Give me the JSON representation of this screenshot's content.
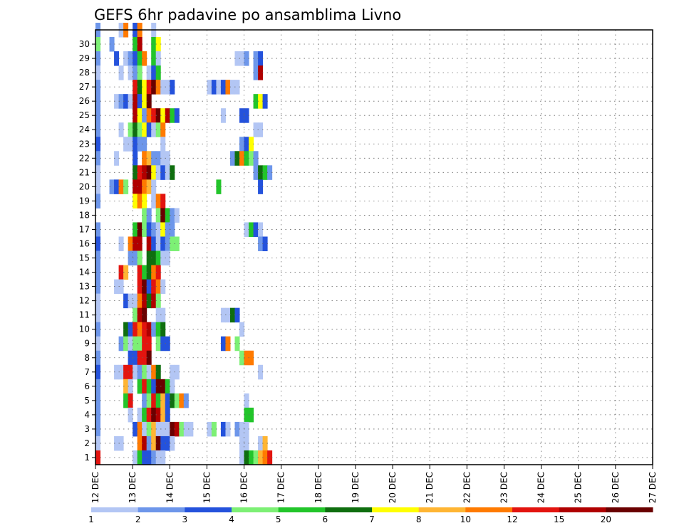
{
  "chart_data": {
    "type": "heatmap",
    "title": "GEFS 6hr padavine po ansamblima Livno",
    "xlabel": "",
    "ylabel": "",
    "x_ticks": [
      "12 DEC",
      "13 DEC",
      "14 DEC",
      "15 DEC",
      "16 DEC",
      "17 DEC",
      "18 DEC",
      "19 DEC",
      "20 DEC",
      "21 DEC",
      "22 DEC",
      "23 DEC",
      "24 DEC",
      "25 DEC",
      "26 DEC",
      "27 DEC"
    ],
    "y_ticks": [
      "1",
      "2",
      "3",
      "4",
      "5",
      "6",
      "7",
      "8",
      "9",
      "10",
      "11",
      "12",
      "13",
      "14",
      "15",
      "16",
      "17",
      "18",
      "19",
      "20",
      "21",
      "22",
      "23",
      "24",
      "25",
      "26",
      "27",
      "28",
      "29",
      "30"
    ],
    "grid": true,
    "time_step_hours": 6,
    "colorbar": {
      "labels": [
        "1",
        "2",
        "3",
        "4",
        "5",
        "6",
        "7",
        "8",
        "10",
        "12",
        "15",
        "20"
      ],
      "colors": [
        "#b3c6f4",
        "#6d96ea",
        "#2452dc",
        "#7df075",
        "#22c52a",
        "#0f6e0f",
        "#ffff00",
        "#ffb533",
        "#ff7a00",
        "#e3140f",
        "#b00000",
        "#6a0000"
      ],
      "placement": "bottom"
    },
    "cells": [
      [
        30,
        0,
        2
      ],
      [
        30,
        5,
        1
      ],
      [
        30,
        6,
        10
      ],
      [
        30,
        8,
        3
      ],
      [
        30,
        9,
        10
      ],
      [
        30,
        12,
        1
      ],
      [
        29,
        0,
        4
      ],
      [
        29,
        3,
        2
      ],
      [
        29,
        8,
        5
      ],
      [
        29,
        9,
        15
      ],
      [
        29,
        12,
        5
      ],
      [
        29,
        13,
        7
      ],
      [
        28,
        0,
        2
      ],
      [
        28,
        4,
        3
      ],
      [
        28,
        6,
        1
      ],
      [
        28,
        7,
        2
      ],
      [
        28,
        8,
        3
      ],
      [
        28,
        9,
        5
      ],
      [
        28,
        10,
        10
      ],
      [
        28,
        12,
        5
      ],
      [
        28,
        13,
        1
      ],
      [
        28,
        30,
        1
      ],
      [
        28,
        31,
        1
      ],
      [
        28,
        32,
        2
      ],
      [
        28,
        34,
        2
      ],
      [
        28,
        35,
        3
      ],
      [
        27,
        0,
        1
      ],
      [
        27,
        5,
        1
      ],
      [
        27,
        7,
        1
      ],
      [
        27,
        8,
        2
      ],
      [
        27,
        9,
        4
      ],
      [
        27,
        11,
        1
      ],
      [
        27,
        12,
        3
      ],
      [
        27,
        13,
        5
      ],
      [
        27,
        34,
        2
      ],
      [
        27,
        35,
        15
      ],
      [
        26,
        0,
        2
      ],
      [
        26,
        8,
        12
      ],
      [
        26,
        9,
        6
      ],
      [
        26,
        10,
        7
      ],
      [
        26,
        11,
        12
      ],
      [
        26,
        12,
        20
      ],
      [
        26,
        13,
        10
      ],
      [
        26,
        14,
        1
      ],
      [
        26,
        15,
        1
      ],
      [
        26,
        16,
        3
      ],
      [
        26,
        24,
        1
      ],
      [
        26,
        25,
        3
      ],
      [
        26,
        26,
        1
      ],
      [
        26,
        27,
        3
      ],
      [
        26,
        28,
        10
      ],
      [
        26,
        29,
        1
      ],
      [
        26,
        30,
        1
      ],
      [
        25,
        0,
        2
      ],
      [
        25,
        4,
        1
      ],
      [
        25,
        5,
        2
      ],
      [
        25,
        6,
        3
      ],
      [
        25,
        7,
        1
      ],
      [
        25,
        8,
        15
      ],
      [
        25,
        9,
        3
      ],
      [
        25,
        10,
        7
      ],
      [
        25,
        11,
        20
      ],
      [
        25,
        34,
        5
      ],
      [
        25,
        35,
        7
      ],
      [
        25,
        36,
        3
      ],
      [
        24,
        0,
        2
      ],
      [
        24,
        8,
        15
      ],
      [
        24,
        9,
        7
      ],
      [
        24,
        10,
        2
      ],
      [
        24,
        11,
        10
      ],
      [
        24,
        12,
        12
      ],
      [
        24,
        13,
        20
      ],
      [
        24,
        14,
        7
      ],
      [
        24,
        15,
        15
      ],
      [
        24,
        16,
        5
      ],
      [
        24,
        17,
        3
      ],
      [
        24,
        27,
        1
      ],
      [
        24,
        31,
        3
      ],
      [
        24,
        32,
        3
      ],
      [
        23,
        0,
        2
      ],
      [
        23,
        5,
        1
      ],
      [
        23,
        7,
        4
      ],
      [
        23,
        8,
        6
      ],
      [
        23,
        9,
        4
      ],
      [
        23,
        10,
        7
      ],
      [
        23,
        11,
        3
      ],
      [
        23,
        12,
        1
      ],
      [
        23,
        13,
        4
      ],
      [
        23,
        14,
        10
      ],
      [
        23,
        34,
        1
      ],
      [
        23,
        35,
        1
      ],
      [
        22,
        0,
        3
      ],
      [
        22,
        6,
        1
      ],
      [
        22,
        7,
        1
      ],
      [
        22,
        8,
        3
      ],
      [
        22,
        9,
        2
      ],
      [
        22,
        10,
        2
      ],
      [
        22,
        14,
        1
      ],
      [
        22,
        31,
        2
      ],
      [
        22,
        32,
        3
      ],
      [
        22,
        33,
        7
      ],
      [
        21,
        0,
        2
      ],
      [
        21,
        4,
        1
      ],
      [
        21,
        8,
        3
      ],
      [
        21,
        10,
        10
      ],
      [
        21,
        11,
        8
      ],
      [
        21,
        12,
        2
      ],
      [
        21,
        13,
        2
      ],
      [
        21,
        14,
        1
      ],
      [
        21,
        15,
        1
      ],
      [
        21,
        29,
        2
      ],
      [
        21,
        30,
        6
      ],
      [
        21,
        31,
        10
      ],
      [
        21,
        32,
        5
      ],
      [
        21,
        33,
        4
      ],
      [
        21,
        34,
        2
      ],
      [
        20,
        0,
        1
      ],
      [
        20,
        8,
        6
      ],
      [
        20,
        9,
        12
      ],
      [
        20,
        10,
        15
      ],
      [
        20,
        11,
        20
      ],
      [
        20,
        12,
        7
      ],
      [
        20,
        13,
        1
      ],
      [
        20,
        14,
        3
      ],
      [
        20,
        15,
        1
      ],
      [
        20,
        16,
        6
      ],
      [
        20,
        34,
        2
      ],
      [
        20,
        35,
        6
      ],
      [
        20,
        36,
        5
      ],
      [
        20,
        37,
        2
      ],
      [
        19,
        0,
        1
      ],
      [
        19,
        3,
        2
      ],
      [
        19,
        4,
        3
      ],
      [
        19,
        5,
        10
      ],
      [
        19,
        6,
        4
      ],
      [
        19,
        8,
        15
      ],
      [
        19,
        9,
        15
      ],
      [
        19,
        10,
        10
      ],
      [
        19,
        11,
        8
      ],
      [
        19,
        12,
        1
      ],
      [
        19,
        26,
        5
      ],
      [
        19,
        35,
        3
      ],
      [
        18,
        0,
        2
      ],
      [
        18,
        8,
        7
      ],
      [
        18,
        9,
        10
      ],
      [
        18,
        10,
        7
      ],
      [
        18,
        12,
        1
      ],
      [
        18,
        13,
        10
      ],
      [
        18,
        14,
        12
      ],
      [
        17,
        10,
        4
      ],
      [
        17,
        11,
        2
      ],
      [
        17,
        13,
        4
      ],
      [
        17,
        14,
        20
      ],
      [
        17,
        15,
        5
      ],
      [
        17,
        16,
        2
      ],
      [
        17,
        17,
        1
      ],
      [
        16,
        0,
        2
      ],
      [
        16,
        8,
        5
      ],
      [
        16,
        9,
        20
      ],
      [
        16,
        10,
        4
      ],
      [
        16,
        11,
        3
      ],
      [
        16,
        12,
        2
      ],
      [
        16,
        13,
        1
      ],
      [
        16,
        14,
        7
      ],
      [
        16,
        15,
        2
      ],
      [
        16,
        16,
        2
      ],
      [
        16,
        32,
        1
      ],
      [
        16,
        33,
        5
      ],
      [
        16,
        34,
        3
      ],
      [
        16,
        35,
        1
      ],
      [
        15,
        0,
        3
      ],
      [
        15,
        5,
        1
      ],
      [
        15,
        7,
        10
      ],
      [
        15,
        8,
        15
      ],
      [
        15,
        9,
        15
      ],
      [
        15,
        11,
        15
      ],
      [
        15,
        12,
        3
      ],
      [
        15,
        13,
        1
      ],
      [
        15,
        14,
        3
      ],
      [
        15,
        15,
        2
      ],
      [
        15,
        16,
        4
      ],
      [
        15,
        17,
        4
      ],
      [
        15,
        35,
        2
      ],
      [
        15,
        36,
        3
      ],
      [
        14,
        0,
        2
      ],
      [
        14,
        7,
        2
      ],
      [
        14,
        8,
        2
      ],
      [
        14,
        9,
        4
      ],
      [
        14,
        11,
        6
      ],
      [
        14,
        12,
        6
      ],
      [
        14,
        13,
        5
      ],
      [
        14,
        14,
        1
      ],
      [
        14,
        15,
        1
      ],
      [
        13,
        0,
        2
      ],
      [
        13,
        5,
        12
      ],
      [
        13,
        6,
        8
      ],
      [
        13,
        9,
        12
      ],
      [
        13,
        10,
        5
      ],
      [
        13,
        11,
        6
      ],
      [
        13,
        12,
        10
      ],
      [
        13,
        13,
        12
      ],
      [
        12,
        0,
        2
      ],
      [
        12,
        4,
        1
      ],
      [
        12,
        5,
        1
      ],
      [
        12,
        9,
        12
      ],
      [
        12,
        10,
        20
      ],
      [
        12,
        11,
        3
      ],
      [
        12,
        12,
        12
      ],
      [
        12,
        13,
        10
      ],
      [
        12,
        14,
        1
      ],
      [
        11,
        0,
        1
      ],
      [
        11,
        6,
        3
      ],
      [
        11,
        7,
        1
      ],
      [
        11,
        8,
        1
      ],
      [
        11,
        9,
        10
      ],
      [
        11,
        10,
        15
      ],
      [
        11,
        11,
        6
      ],
      [
        11,
        12,
        15
      ],
      [
        11,
        13,
        4
      ],
      [
        10,
        0,
        1
      ],
      [
        10,
        8,
        4
      ],
      [
        10,
        9,
        15
      ],
      [
        10,
        10,
        20
      ],
      [
        10,
        13,
        1
      ],
      [
        10,
        14,
        1
      ],
      [
        10,
        27,
        1
      ],
      [
        10,
        28,
        1
      ],
      [
        10,
        29,
        6
      ],
      [
        10,
        30,
        3
      ],
      [
        9,
        0,
        2
      ],
      [
        9,
        6,
        6
      ],
      [
        9,
        7,
        3
      ],
      [
        9,
        8,
        12
      ],
      [
        9,
        9,
        10
      ],
      [
        9,
        10,
        12
      ],
      [
        9,
        11,
        15
      ],
      [
        9,
        12,
        2
      ],
      [
        9,
        13,
        5
      ],
      [
        9,
        14,
        6
      ],
      [
        9,
        31,
        1
      ],
      [
        8,
        0,
        1
      ],
      [
        8,
        5,
        2
      ],
      [
        8,
        6,
        4
      ],
      [
        8,
        7,
        1
      ],
      [
        8,
        8,
        4
      ],
      [
        8,
        9,
        4
      ],
      [
        8,
        10,
        12
      ],
      [
        8,
        11,
        12
      ],
      [
        8,
        13,
        4
      ],
      [
        8,
        14,
        3
      ],
      [
        8,
        15,
        3
      ],
      [
        8,
        27,
        3
      ],
      [
        8,
        28,
        10
      ],
      [
        8,
        30,
        4
      ],
      [
        7,
        0,
        2
      ],
      [
        7,
        7,
        3
      ],
      [
        7,
        8,
        3
      ],
      [
        7,
        9,
        12
      ],
      [
        7,
        10,
        12
      ],
      [
        7,
        11,
        20
      ],
      [
        7,
        31,
        4
      ],
      [
        7,
        32,
        10
      ],
      [
        7,
        33,
        10
      ],
      [
        6,
        0,
        3
      ],
      [
        6,
        4,
        1
      ],
      [
        6,
        5,
        1
      ],
      [
        6,
        6,
        12
      ],
      [
        6,
        7,
        12
      ],
      [
        6,
        8,
        1
      ],
      [
        6,
        9,
        2
      ],
      [
        6,
        10,
        4
      ],
      [
        6,
        11,
        1
      ],
      [
        6,
        12,
        10
      ],
      [
        6,
        13,
        6
      ],
      [
        6,
        16,
        1
      ],
      [
        6,
        17,
        1
      ],
      [
        6,
        35,
        1
      ],
      [
        5,
        0,
        2
      ],
      [
        5,
        6,
        8
      ],
      [
        5,
        7,
        1
      ],
      [
        5,
        9,
        5
      ],
      [
        5,
        10,
        12
      ],
      [
        5,
        11,
        5
      ],
      [
        5,
        12,
        3
      ],
      [
        5,
        13,
        20
      ],
      [
        5,
        14,
        20
      ],
      [
        5,
        15,
        5
      ],
      [
        5,
        16,
        1
      ],
      [
        4,
        0,
        2
      ],
      [
        4,
        6,
        5
      ],
      [
        4,
        7,
        12
      ],
      [
        4,
        10,
        2
      ],
      [
        4,
        11,
        4
      ],
      [
        4,
        12,
        12
      ],
      [
        4,
        13,
        5
      ],
      [
        4,
        14,
        8
      ],
      [
        4,
        15,
        3
      ],
      [
        4,
        16,
        6
      ],
      [
        4,
        17,
        4
      ],
      [
        4,
        18,
        10
      ],
      [
        4,
        19,
        2
      ],
      [
        4,
        32,
        1
      ],
      [
        3,
        0,
        2
      ],
      [
        3,
        7,
        1
      ],
      [
        3,
        9,
        1
      ],
      [
        3,
        10,
        5
      ],
      [
        3,
        11,
        12
      ],
      [
        3,
        12,
        20
      ],
      [
        3,
        13,
        15
      ],
      [
        3,
        14,
        8
      ],
      [
        3,
        15,
        3
      ],
      [
        3,
        32,
        5
      ],
      [
        3,
        33,
        5
      ],
      [
        2,
        0,
        2
      ],
      [
        2,
        8,
        3
      ],
      [
        2,
        9,
        10
      ],
      [
        2,
        10,
        1
      ],
      [
        2,
        11,
        4
      ],
      [
        2,
        12,
        8
      ],
      [
        2,
        13,
        1
      ],
      [
        2,
        14,
        1
      ],
      [
        2,
        15,
        1
      ],
      [
        2,
        16,
        20
      ],
      [
        2,
        17,
        15
      ],
      [
        2,
        18,
        4
      ],
      [
        2,
        19,
        1
      ],
      [
        2,
        20,
        1
      ],
      [
        2,
        24,
        1
      ],
      [
        2,
        25,
        4
      ],
      [
        2,
        27,
        3
      ],
      [
        2,
        28,
        1
      ],
      [
        2,
        30,
        2
      ],
      [
        2,
        31,
        1
      ],
      [
        2,
        32,
        1
      ],
      [
        1,
        0,
        1
      ],
      [
        1,
        4,
        1
      ],
      [
        1,
        5,
        1
      ],
      [
        1,
        9,
        10
      ],
      [
        1,
        10,
        15
      ],
      [
        1,
        11,
        2
      ],
      [
        1,
        12,
        8
      ],
      [
        1,
        13,
        20
      ],
      [
        1,
        14,
        3
      ],
      [
        1,
        15,
        3
      ],
      [
        1,
        16,
        1
      ],
      [
        1,
        31,
        1
      ],
      [
        1,
        32,
        1
      ],
      [
        1,
        35,
        1
      ],
      [
        1,
        36,
        8
      ],
      [
        0,
        0,
        12
      ],
      [
        0,
        8,
        1
      ],
      [
        0,
        9,
        5
      ],
      [
        0,
        10,
        3
      ],
      [
        0,
        11,
        3
      ],
      [
        0,
        12,
        2
      ],
      [
        0,
        13,
        1
      ],
      [
        0,
        14,
        1
      ],
      [
        0,
        31,
        1
      ],
      [
        0,
        32,
        6
      ],
      [
        0,
        33,
        5
      ],
      [
        0,
        34,
        4
      ],
      [
        0,
        35,
        8
      ],
      [
        0,
        36,
        10
      ],
      [
        0,
        37,
        12
      ]
    ]
  }
}
